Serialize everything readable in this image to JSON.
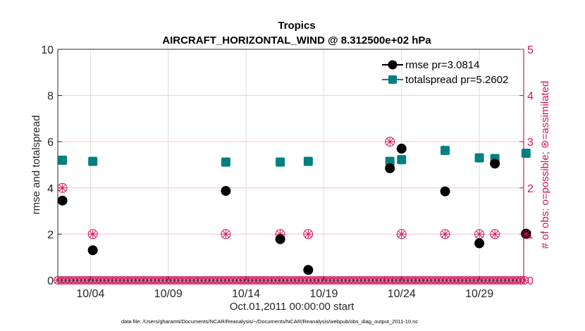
{
  "chart_data": {
    "type": "scatter",
    "title": "Tropics",
    "subtitle": "AIRCRAFT_HORIZONTAL_WIND @ 8.312500e+02 hPa",
    "xlabel": "Oct.01,2011 00:00:00 start",
    "ylabel": "rmse and totalspread",
    "ylabel_right": "# of obs: o=possible; ⊛=assimilated",
    "x_unit": "days since Oct.01,2011 00:00:00",
    "xlim": [
      0.9,
      30.85
    ],
    "ylim": [
      0,
      10
    ],
    "ylim_right": [
      0,
      5
    ],
    "x_ticks": [
      {
        "value": 3,
        "label": "10/04"
      },
      {
        "value": 8,
        "label": "10/09"
      },
      {
        "value": 13,
        "label": "10/14"
      },
      {
        "value": 18,
        "label": "10/19"
      },
      {
        "value": 23,
        "label": "10/24"
      },
      {
        "value": 28,
        "label": "10/29"
      }
    ],
    "y_ticks": [
      {
        "value": 0,
        "label": "0"
      },
      {
        "value": 2,
        "label": "2"
      },
      {
        "value": 4,
        "label": "4"
      },
      {
        "value": 6,
        "label": "6"
      },
      {
        "value": 8,
        "label": "8"
      },
      {
        "value": 10,
        "label": "10"
      }
    ],
    "y_ticks_right": [
      {
        "value": 0,
        "label": "0"
      },
      {
        "value": 1,
        "label": "1"
      },
      {
        "value": 2,
        "label": "2"
      },
      {
        "value": 3,
        "label": "3"
      },
      {
        "value": 4,
        "label": "4"
      },
      {
        "value": 5,
        "label": "5"
      }
    ],
    "grid": true,
    "legend_position": "top-right",
    "series": [
      {
        "name": "rmse pr=3.0814",
        "color": "#000000",
        "marker": "circle",
        "axis": "left",
        "x": [
          1.2,
          3.15,
          11.7,
          15.2,
          17.0,
          22.25,
          23.0,
          25.8,
          28.0,
          29.0,
          31.0
        ],
        "y": [
          3.45,
          1.3,
          3.87,
          1.78,
          0.45,
          4.85,
          5.7,
          3.85,
          1.6,
          5.05,
          2.02
        ]
      },
      {
        "name": "totalspread pr=5.2602",
        "color": "#008080",
        "marker": "square",
        "axis": "left",
        "x": [
          1.2,
          3.15,
          11.7,
          15.2,
          17.0,
          22.25,
          23.0,
          25.8,
          28.0,
          29.0,
          31.0
        ],
        "y": [
          5.2,
          5.15,
          5.12,
          5.12,
          5.15,
          5.15,
          5.22,
          5.62,
          5.3,
          5.27,
          5.5
        ]
      },
      {
        "name": "obs possible",
        "color": "#d4145a",
        "marker": "circle-open",
        "axis": "right",
        "x": [
          1.2,
          3.15,
          11.7,
          15.2,
          17.0,
          22.25,
          23.0,
          25.8,
          28.0,
          29.0,
          31.0
        ],
        "y": [
          2,
          1,
          1,
          1,
          1,
          3,
          1,
          1,
          1,
          1,
          1
        ]
      },
      {
        "name": "obs assimilated",
        "color": "#d4145a",
        "marker": "asterisk",
        "axis": "right",
        "x": [
          1.2,
          3.15,
          11.7,
          15.2,
          17.0,
          22.25,
          23.0,
          25.8,
          28.0,
          29.0,
          31.0
        ],
        "y": [
          2,
          1,
          1,
          1,
          1,
          3,
          1,
          1,
          1,
          1,
          1
        ]
      }
    ],
    "zero_obs_markers": "every 6 hours across the whole period at 0 on the right axis",
    "footnote": "data file: /Users/gharamti/Documents/NCAR/Reanalysis/~/Documents/NCAR/Reanalysis/webpub/obs_diag_output_2011-10.nc"
  },
  "colors": {
    "obs": "#d4145a",
    "rmse": "#000000",
    "spread": "#008080",
    "grid": "#dcdcdc",
    "grid_pink": "#f3c6d6"
  }
}
